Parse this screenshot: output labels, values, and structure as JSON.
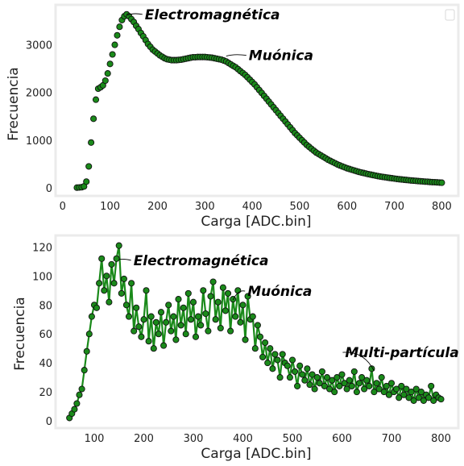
{
  "chart_data": [
    {
      "type": "scatter",
      "xlabel": "Carga [ADC.bin]",
      "ylabel": "Frecuencia",
      "xlim": [
        -15,
        835
      ],
      "ylim": [
        -170,
        3840
      ],
      "xticks": [
        0,
        100,
        200,
        300,
        400,
        500,
        600,
        700,
        800
      ],
      "yticks": [
        0,
        1000,
        2000,
        3000
      ],
      "grid": false,
      "legend": "top-right",
      "marker_color": "#1a8a1a",
      "points": [
        [
          30,
          5
        ],
        [
          35,
          8
        ],
        [
          40,
          12
        ],
        [
          45,
          30
        ],
        [
          50,
          130
        ],
        [
          55,
          450
        ],
        [
          60,
          950
        ],
        [
          65,
          1450
        ],
        [
          70,
          1850
        ],
        [
          75,
          2080
        ],
        [
          80,
          2110
        ],
        [
          85,
          2150
        ],
        [
          90,
          2250
        ],
        [
          95,
          2400
        ],
        [
          100,
          2600
        ],
        [
          105,
          2800
        ],
        [
          110,
          3000
        ],
        [
          115,
          3200
        ],
        [
          120,
          3380
        ],
        [
          125,
          3520
        ],
        [
          130,
          3600
        ],
        [
          135,
          3640
        ],
        [
          140,
          3600
        ],
        [
          145,
          3540
        ],
        [
          150,
          3480
        ],
        [
          155,
          3400
        ],
        [
          160,
          3330
        ],
        [
          165,
          3250
        ],
        [
          170,
          3180
        ],
        [
          175,
          3100
        ],
        [
          180,
          3020
        ],
        [
          185,
          2960
        ],
        [
          190,
          2900
        ],
        [
          195,
          2860
        ],
        [
          200,
          2820
        ],
        [
          205,
          2780
        ],
        [
          210,
          2750
        ],
        [
          215,
          2720
        ],
        [
          220,
          2700
        ],
        [
          225,
          2690
        ],
        [
          230,
          2680
        ],
        [
          235,
          2680
        ],
        [
          240,
          2680
        ],
        [
          245,
          2685
        ],
        [
          250,
          2690
        ],
        [
          255,
          2700
        ],
        [
          260,
          2710
        ],
        [
          265,
          2720
        ],
        [
          270,
          2730
        ],
        [
          275,
          2740
        ],
        [
          280,
          2740
        ],
        [
          285,
          2745
        ],
        [
          290,
          2745
        ],
        [
          295,
          2745
        ],
        [
          300,
          2745
        ],
        [
          305,
          2740
        ],
        [
          310,
          2735
        ],
        [
          315,
          2730
        ],
        [
          320,
          2720
        ],
        [
          325,
          2710
        ],
        [
          330,
          2700
        ],
        [
          335,
          2690
        ],
        [
          340,
          2670
        ],
        [
          345,
          2650
        ],
        [
          350,
          2620
        ],
        [
          355,
          2590
        ],
        [
          360,
          2560
        ],
        [
          365,
          2530
        ],
        [
          370,
          2490
        ],
        [
          375,
          2450
        ],
        [
          380,
          2410
        ],
        [
          385,
          2370
        ],
        [
          390,
          2320
        ],
        [
          395,
          2270
        ],
        [
          400,
          2220
        ],
        [
          405,
          2170
        ],
        [
          410,
          2110
        ],
        [
          415,
          2050
        ],
        [
          420,
          1990
        ],
        [
          425,
          1930
        ],
        [
          430,
          1870
        ],
        [
          435,
          1810
        ],
        [
          440,
          1750
        ],
        [
          445,
          1690
        ],
        [
          450,
          1630
        ],
        [
          455,
          1570
        ],
        [
          460,
          1510
        ],
        [
          465,
          1450
        ],
        [
          470,
          1390
        ],
        [
          475,
          1330
        ],
        [
          480,
          1270
        ],
        [
          485,
          1210
        ],
        [
          490,
          1150
        ],
        [
          495,
          1100
        ],
        [
          500,
          1050
        ],
        [
          505,
          1000
        ],
        [
          510,
          950
        ],
        [
          515,
          900
        ],
        [
          520,
          860
        ],
        [
          525,
          820
        ],
        [
          530,
          780
        ],
        [
          535,
          740
        ],
        [
          540,
          710
        ],
        [
          545,
          680
        ],
        [
          550,
          650
        ],
        [
          555,
          620
        ],
        [
          560,
          590
        ],
        [
          565,
          565
        ],
        [
          570,
          540
        ],
        [
          575,
          515
        ],
        [
          580,
          490
        ],
        [
          585,
          470
        ],
        [
          590,
          450
        ],
        [
          595,
          430
        ],
        [
          600,
          410
        ],
        [
          605,
          395
        ],
        [
          610,
          380
        ],
        [
          615,
          365
        ],
        [
          620,
          350
        ],
        [
          625,
          335
        ],
        [
          630,
          322
        ],
        [
          635,
          310
        ],
        [
          640,
          298
        ],
        [
          645,
          287
        ],
        [
          650,
          276
        ],
        [
          655,
          266
        ],
        [
          660,
          256
        ],
        [
          665,
          247
        ],
        [
          670,
          238
        ],
        [
          675,
          230
        ],
        [
          680,
          222
        ],
        [
          685,
          214
        ],
        [
          690,
          207
        ],
        [
          695,
          200
        ],
        [
          700,
          193
        ],
        [
          705,
          187
        ],
        [
          710,
          181
        ],
        [
          715,
          175
        ],
        [
          720,
          170
        ],
        [
          725,
          165
        ],
        [
          730,
          160
        ],
        [
          735,
          155
        ],
        [
          740,
          150
        ],
        [
          745,
          146
        ],
        [
          750,
          142
        ],
        [
          755,
          138
        ],
        [
          760,
          134
        ],
        [
          765,
          130
        ],
        [
          770,
          127
        ],
        [
          775,
          123
        ],
        [
          780,
          120
        ],
        [
          785,
          117
        ],
        [
          790,
          114
        ],
        [
          795,
          111
        ],
        [
          800,
          108
        ]
      ],
      "annotations": [
        {
          "text": "Electromagnética",
          "x": 136,
          "y": 3640
        },
        {
          "text": "Muónica",
          "x": 345,
          "y": 2780
        }
      ]
    },
    {
      "type": "line",
      "xlabel": "Carga [ADC.bin]",
      "ylabel": "Frecuencia",
      "xlim": [
        22,
        835
      ],
      "ylim": [
        -5,
        128
      ],
      "xticks": [
        100,
        200,
        300,
        400,
        500,
        600,
        700,
        800
      ],
      "yticks": [
        0,
        20,
        40,
        60,
        80,
        100,
        120
      ],
      "grid": false,
      "marker_color": "#1a8a1a",
      "points": [
        [
          50,
          2
        ],
        [
          55,
          5
        ],
        [
          60,
          8
        ],
        [
          65,
          12
        ],
        [
          70,
          18
        ],
        [
          75,
          22
        ],
        [
          80,
          35
        ],
        [
          85,
          48
        ],
        [
          90,
          60
        ],
        [
          95,
          72
        ],
        [
          100,
          80
        ],
        [
          105,
          78
        ],
        [
          110,
          95
        ],
        [
          115,
          112
        ],
        [
          120,
          90
        ],
        [
          125,
          100
        ],
        [
          130,
          82
        ],
        [
          135,
          108
        ],
        [
          140,
          95
        ],
        [
          145,
          112
        ],
        [
          150,
          121
        ],
        [
          155,
          88
        ],
        [
          160,
          98
        ],
        [
          165,
          80
        ],
        [
          170,
          72
        ],
        [
          175,
          95
        ],
        [
          180,
          62
        ],
        [
          185,
          78
        ],
        [
          190,
          65
        ],
        [
          195,
          58
        ],
        [
          200,
          70
        ],
        [
          205,
          90
        ],
        [
          210,
          55
        ],
        [
          215,
          72
        ],
        [
          220,
          50
        ],
        [
          225,
          68
        ],
        [
          230,
          60
        ],
        [
          235,
          75
        ],
        [
          240,
          52
        ],
        [
          245,
          68
        ],
        [
          250,
          80
        ],
        [
          255,
          62
        ],
        [
          260,
          72
        ],
        [
          265,
          56
        ],
        [
          270,
          84
        ],
        [
          275,
          66
        ],
        [
          280,
          78
        ],
        [
          285,
          60
        ],
        [
          290,
          88
        ],
        [
          295,
          70
        ],
        [
          300,
          82
        ],
        [
          305,
          58
        ],
        [
          310,
          72
        ],
        [
          315,
          66
        ],
        [
          320,
          90
        ],
        [
          325,
          74
        ],
        [
          330,
          62
        ],
        [
          335,
          86
        ],
        [
          340,
          96
        ],
        [
          345,
          70
        ],
        [
          350,
          82
        ],
        [
          355,
          64
        ],
        [
          360,
          92
        ],
        [
          365,
          76
        ],
        [
          370,
          88
        ],
        [
          375,
          62
        ],
        [
          380,
          84
        ],
        [
          385,
          72
        ],
        [
          390,
          90
        ],
        [
          395,
          68
        ],
        [
          400,
          80
        ],
        [
          405,
          56
        ],
        [
          410,
          86
        ],
        [
          415,
          70
        ],
        [
          420,
          72
        ],
        [
          425,
          50
        ],
        [
          430,
          66
        ],
        [
          435,
          58
        ],
        [
          440,
          44
        ],
        [
          445,
          54
        ],
        [
          450,
          40
        ],
        [
          455,
          50
        ],
        [
          460,
          36
        ],
        [
          465,
          46
        ],
        [
          470,
          42
        ],
        [
          475,
          30
        ],
        [
          480,
          46
        ],
        [
          485,
          40
        ],
        [
          490,
          38
        ],
        [
          495,
          30
        ],
        [
          500,
          42
        ],
        [
          505,
          34
        ],
        [
          510,
          24
        ],
        [
          515,
          38
        ],
        [
          520,
          32
        ],
        [
          525,
          28
        ],
        [
          530,
          36
        ],
        [
          535,
          25
        ],
        [
          540,
          32
        ],
        [
          545,
          22
        ],
        [
          550,
          30
        ],
        [
          555,
          26
        ],
        [
          560,
          34
        ],
        [
          565,
          24
        ],
        [
          570,
          30
        ],
        [
          575,
          22
        ],
        [
          580,
          28
        ],
        [
          585,
          20
        ],
        [
          590,
          30
        ],
        [
          595,
          24
        ],
        [
          600,
          32
        ],
        [
          605,
          26
        ],
        [
          610,
          22
        ],
        [
          615,
          28
        ],
        [
          620,
          24
        ],
        [
          625,
          34
        ],
        [
          630,
          20
        ],
        [
          635,
          26
        ],
        [
          640,
          30
        ],
        [
          645,
          22
        ],
        [
          650,
          28
        ],
        [
          655,
          24
        ],
        [
          660,
          36
        ],
        [
          665,
          20
        ],
        [
          670,
          26
        ],
        [
          675,
          22
        ],
        [
          680,
          30
        ],
        [
          685,
          20
        ],
        [
          690,
          24
        ],
        [
          695,
          18
        ],
        [
          700,
          26
        ],
        [
          705,
          20
        ],
        [
          710,
          22
        ],
        [
          715,
          16
        ],
        [
          720,
          24
        ],
        [
          725,
          18
        ],
        [
          730,
          22
        ],
        [
          735,
          16
        ],
        [
          740,
          20
        ],
        [
          745,
          14
        ],
        [
          750,
          22
        ],
        [
          755,
          16
        ],
        [
          760,
          20
        ],
        [
          765,
          14
        ],
        [
          770,
          18
        ],
        [
          775,
          16
        ],
        [
          780,
          24
        ],
        [
          785,
          14
        ],
        [
          790,
          18
        ],
        [
          795,
          16
        ],
        [
          800,
          15
        ]
      ],
      "annotations": [
        {
          "text": "Electromagnética",
          "x": 150,
          "y": 112
        },
        {
          "text": "Muónica",
          "x": 380,
          "y": 84
        },
        {
          "text": "Multi-partícula",
          "x": 665,
          "y": 35
        }
      ]
    }
  ]
}
